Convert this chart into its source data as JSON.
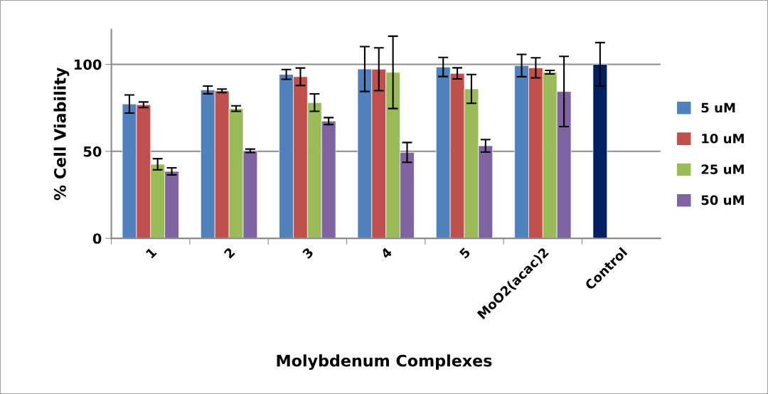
{
  "chart_data": {
    "type": "bar",
    "xlabel": "Molybdenum Complexes",
    "ylabel": "% Cell Viability",
    "categories": [
      "1",
      "2",
      "3",
      "4",
      "5",
      "MoO2(acac)2",
      "Control"
    ],
    "series": [
      {
        "name": "5 uM",
        "color": "#4f81bd",
        "colors": [
          "#4f81bd",
          "#4f81bd",
          "#4f81bd",
          "#4f81bd",
          "#4f81bd",
          "#4f81bd",
          "#002060"
        ],
        "values": [
          77.2,
          85.3,
          94.2,
          97.3,
          98.5,
          99.3,
          100
        ],
        "errors": [
          5.2,
          2.2,
          2.8,
          12.9,
          5.5,
          6.4,
          12.5
        ]
      },
      {
        "name": "10 uM",
        "color": "#c0504d",
        "values": [
          76.8,
          84.8,
          92.9,
          97.2,
          94.8,
          98.0,
          null
        ],
        "errors": [
          1.6,
          1.0,
          5.0,
          12.3,
          3.2,
          5.8,
          null
        ]
      },
      {
        "name": "25 uM",
        "color": "#9bbb59",
        "values": [
          42.6,
          74.6,
          78.0,
          95.4,
          85.9,
          95.5,
          null
        ],
        "errors": [
          3.2,
          1.6,
          5.0,
          20.8,
          8.3,
          1.0,
          null
        ]
      },
      {
        "name": "50 uM",
        "color": "#8064a2",
        "values": [
          38.5,
          50.3,
          67.4,
          49.4,
          53.2,
          84.4,
          null
        ],
        "errors": [
          2.0,
          1.0,
          2.0,
          5.7,
          3.6,
          20.2,
          null
        ]
      }
    ],
    "ylim": [
      0,
      120
    ],
    "yticks": [
      0,
      50,
      100
    ],
    "grid": "y",
    "legend": "right"
  }
}
